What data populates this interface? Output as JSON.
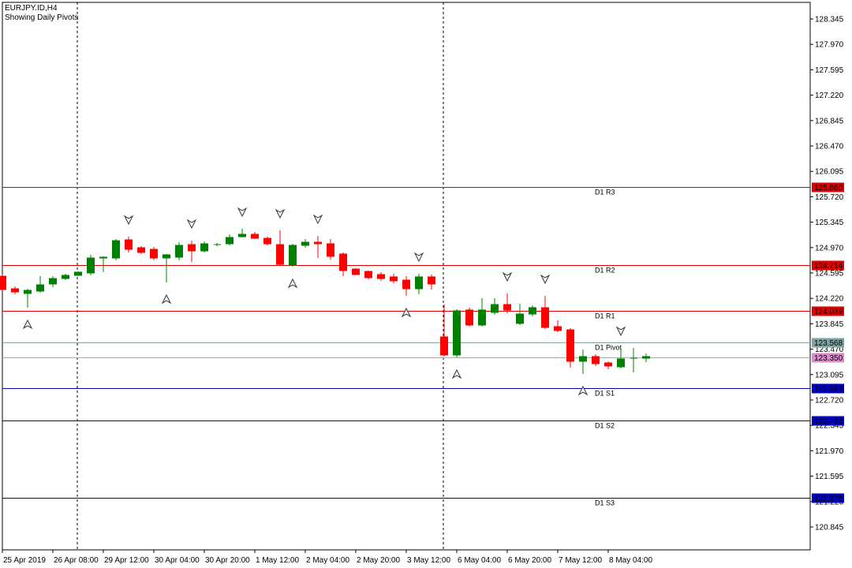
{
  "chart_data": {
    "type": "candlestick",
    "title": "EURJPY.ID,H4",
    "subtitle": "Showing Daily Pivots",
    "up_color": "#008000",
    "down_color": "#ff0000",
    "ylim": [
      120.507,
      128.59
    ],
    "yticks": [
      128.345,
      {
        "value": 127.97,
        "label": "127.970"
      },
      127.595,
      {
        "value": 127.22,
        "label": "127.220"
      },
      126.845,
      {
        "value": 126.47,
        "label": "126.470"
      },
      126.095,
      {
        "value": 125.72,
        "label": "125.720"
      },
      125.345,
      {
        "value": 124.97,
        "label": "124.970"
      },
      124.595,
      {
        "value": 124.22,
        "label": "124.220"
      },
      123.845,
      {
        "value": 123.47,
        "label": "123.470"
      },
      123.095,
      {
        "value": 122.72,
        "label": "122.720"
      },
      122.345,
      {
        "value": 121.97,
        "label": "121.970"
      },
      121.595,
      {
        "value": 121.22,
        "label": "121.220"
      },
      120.845
    ],
    "x_labels": [
      "25 Apr 2019",
      "26 Apr 08:00",
      "29 Apr 12:00",
      "30 Apr 04:00",
      "30 Apr 20:00",
      "1 May 12:00",
      "2 May 04:00",
      "2 May 20:00",
      "3 May 12:00",
      "6 May 04:00",
      "6 May 20:00",
      "7 May 12:00",
      "8 May 04:00"
    ],
    "separators": [
      6,
      35
    ],
    "levels": [
      {
        "name": "D1 R3",
        "value": 125.86,
        "label": "125.860",
        "color": "#e00000"
      },
      {
        "name": "D1 R2",
        "value": 124.714,
        "color": "#e00000"
      },
      {
        "name": "D1 R1",
        "value": 124.039,
        "color": "#e00000"
      },
      {
        "name": "D1 Pivot",
        "value": 123.568,
        "color": "#7fa3a3"
      },
      {
        "value": 123.35,
        "label": "123.350",
        "color": "#d98cc8"
      },
      {
        "name": "D1 S1",
        "value": 122.893,
        "color": "#0000c0"
      },
      {
        "name": "D1 S2",
        "value": 122.422,
        "color": "#0000c0"
      },
      {
        "name": "D1 S3",
        "value": 121.276,
        "color": "#0000c0"
      }
    ],
    "fractals_up": [
      10,
      15,
      19,
      22,
      25,
      33,
      40,
      43,
      49
    ],
    "fractals_down": [
      2,
      13,
      23,
      32,
      36,
      46
    ],
    "candles": [
      {
        "o": 124.548,
        "h": 124.572,
        "l": 124.339,
        "c": 124.35
      },
      {
        "o": 124.362,
        "h": 124.397,
        "l": 124.281,
        "c": 124.315
      },
      {
        "o": 124.292,
        "h": 124.362,
        "l": 124.083,
        "c": 124.339
      },
      {
        "o": 124.327,
        "h": 124.548,
        "l": 124.304,
        "c": 124.42
      },
      {
        "o": 124.432,
        "h": 124.548,
        "l": 124.385,
        "c": 124.513
      },
      {
        "o": 124.513,
        "h": 124.583,
        "l": 124.49,
        "c": 124.56
      },
      {
        "o": 124.56,
        "h": 124.618,
        "l": 124.548,
        "c": 124.607
      },
      {
        "o": 124.595,
        "h": 124.863,
        "l": 124.56,
        "c": 124.816
      },
      {
        "o": 124.816,
        "h": 124.84,
        "l": 124.607,
        "c": 124.828
      },
      {
        "o": 124.816,
        "h": 125.096,
        "l": 124.781,
        "c": 125.072
      },
      {
        "o": 125.084,
        "h": 125.131,
        "l": 124.898,
        "c": 124.944
      },
      {
        "o": 124.968,
        "h": 124.991,
        "l": 124.875,
        "c": 124.898
      },
      {
        "o": 124.944,
        "h": 124.979,
        "l": 124.781,
        "c": 124.816
      },
      {
        "o": 124.816,
        "h": 124.875,
        "l": 124.455,
        "c": 124.863
      },
      {
        "o": 124.828,
        "h": 125.049,
        "l": 124.781,
        "c": 125.003
      },
      {
        "o": 125.014,
        "h": 125.072,
        "l": 124.758,
        "c": 124.921
      },
      {
        "o": 124.921,
        "h": 125.061,
        "l": 124.898,
        "c": 125.026
      },
      {
        "o": 125.014,
        "h": 125.038,
        "l": 124.991,
        "c": 125.014
      },
      {
        "o": 125.026,
        "h": 125.166,
        "l": 125.003,
        "c": 125.119
      },
      {
        "o": 125.131,
        "h": 125.247,
        "l": 125.119,
        "c": 125.166
      },
      {
        "o": 125.166,
        "h": 125.201,
        "l": 125.096,
        "c": 125.107
      },
      {
        "o": 125.107,
        "h": 125.131,
        "l": 125.003,
        "c": 125.026
      },
      {
        "o": 125.014,
        "h": 125.224,
        "l": 124.7,
        "c": 124.723
      },
      {
        "o": 124.711,
        "h": 125.026,
        "l": 124.688,
        "c": 125.003
      },
      {
        "o": 125.003,
        "h": 125.096,
        "l": 124.968,
        "c": 125.049
      },
      {
        "o": 125.049,
        "h": 125.142,
        "l": 124.816,
        "c": 125.026
      },
      {
        "o": 125.026,
        "h": 125.096,
        "l": 124.793,
        "c": 124.84
      },
      {
        "o": 124.875,
        "h": 124.898,
        "l": 124.548,
        "c": 124.63
      },
      {
        "o": 124.653,
        "h": 124.665,
        "l": 124.56,
        "c": 124.572
      },
      {
        "o": 124.618,
        "h": 124.63,
        "l": 124.502,
        "c": 124.525
      },
      {
        "o": 124.572,
        "h": 124.607,
        "l": 124.479,
        "c": 124.513
      },
      {
        "o": 124.537,
        "h": 124.583,
        "l": 124.444,
        "c": 124.479
      },
      {
        "o": 124.49,
        "h": 124.548,
        "l": 124.257,
        "c": 124.362
      },
      {
        "o": 124.362,
        "h": 124.583,
        "l": 124.281,
        "c": 124.537
      },
      {
        "o": 124.537,
        "h": 124.572,
        "l": 124.35,
        "c": 124.432
      },
      {
        "o": 123.652,
        "h": 124.129,
        "l": 123.361,
        "c": 123.384
      },
      {
        "o": 123.384,
        "h": 124.059,
        "l": 123.349,
        "c": 124.036
      },
      {
        "o": 124.048,
        "h": 124.083,
        "l": 123.803,
        "c": 123.826
      },
      {
        "o": 123.826,
        "h": 124.222,
        "l": 123.803,
        "c": 124.048
      },
      {
        "o": 124.013,
        "h": 124.222,
        "l": 123.978,
        "c": 124.129
      },
      {
        "o": 124.129,
        "h": 124.292,
        "l": 124.001,
        "c": 124.048
      },
      {
        "o": 123.85,
        "h": 124.141,
        "l": 123.826,
        "c": 123.989
      },
      {
        "o": 123.989,
        "h": 124.118,
        "l": 123.954,
        "c": 124.083
      },
      {
        "o": 124.083,
        "h": 124.257,
        "l": 123.768,
        "c": 123.791
      },
      {
        "o": 123.803,
        "h": 123.896,
        "l": 123.722,
        "c": 123.745
      },
      {
        "o": 123.756,
        "h": 123.78,
        "l": 123.197,
        "c": 123.291
      },
      {
        "o": 123.291,
        "h": 123.465,
        "l": 123.104,
        "c": 123.361
      },
      {
        "o": 123.361,
        "h": 123.395,
        "l": 123.221,
        "c": 123.256
      },
      {
        "o": 123.267,
        "h": 123.291,
        "l": 123.174,
        "c": 123.221
      },
      {
        "o": 123.209,
        "h": 123.489,
        "l": 123.186,
        "c": 123.326
      },
      {
        "o": 123.337,
        "h": 123.489,
        "l": 123.128,
        "c": 123.337
      },
      {
        "o": 123.337,
        "h": 123.407,
        "l": 123.279,
        "c": 123.361
      }
    ]
  }
}
